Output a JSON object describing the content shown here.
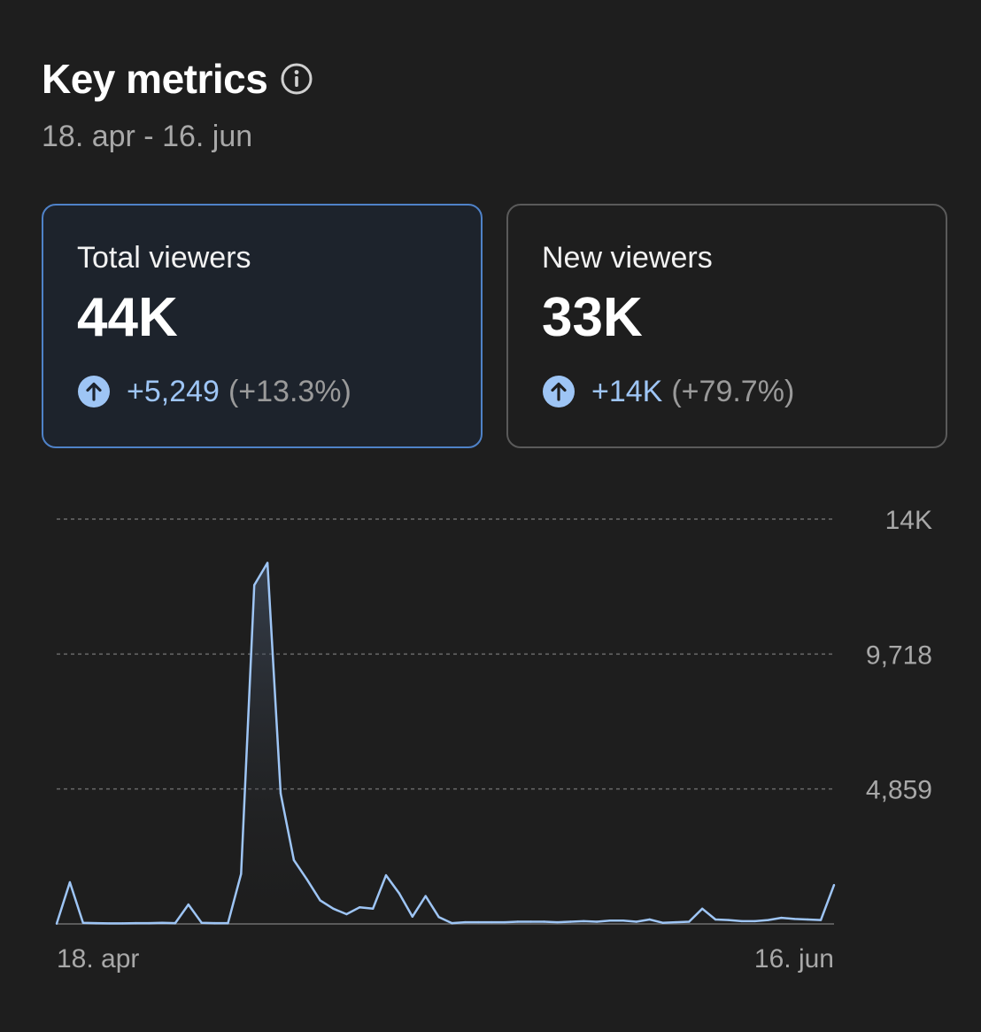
{
  "header": {
    "title": "Key metrics",
    "info_icon": "info-icon",
    "date_range": "18. apr - 16. jun"
  },
  "cards": [
    {
      "label": "Total viewers",
      "value": "44K",
      "delta_abs": "+5,249",
      "delta_pct": "(+13.3%)",
      "icon": "arrow-up-circle-icon",
      "selected": true
    },
    {
      "label": "New viewers",
      "value": "33K",
      "delta_abs": "+14K",
      "delta_pct": "(+79.7%)",
      "icon": "arrow-up-circle-icon",
      "selected": false
    }
  ],
  "colors": {
    "accent": "#9ec5f5",
    "selected_border": "#4f82c8",
    "background": "#1e1e1e"
  },
  "chart_data": {
    "type": "area",
    "title": "",
    "xlabel": "",
    "ylabel": "",
    "x_start_label": "18. apr",
    "x_end_label": "16. jun",
    "y_ticks": [
      0,
      4859,
      9718,
      14000
    ],
    "y_tick_labels": [
      "4,859",
      "9,718",
      "14K"
    ],
    "ylim": [
      0,
      14577
    ],
    "series": [
      {
        "name": "Total viewers",
        "values": [
          10,
          1500,
          40,
          30,
          20,
          20,
          30,
          30,
          40,
          30,
          700,
          40,
          30,
          30,
          1800,
          12200,
          13000,
          4700,
          2300,
          1600,
          850,
          550,
          350,
          600,
          550,
          1750,
          1100,
          260,
          1000,
          250,
          30,
          60,
          60,
          60,
          60,
          80,
          80,
          80,
          60,
          80,
          100,
          80,
          120,
          120,
          80,
          160,
          40,
          60,
          80,
          550,
          160,
          140,
          100,
          100,
          140,
          220,
          180,
          160,
          140,
          1400
        ]
      }
    ]
  }
}
